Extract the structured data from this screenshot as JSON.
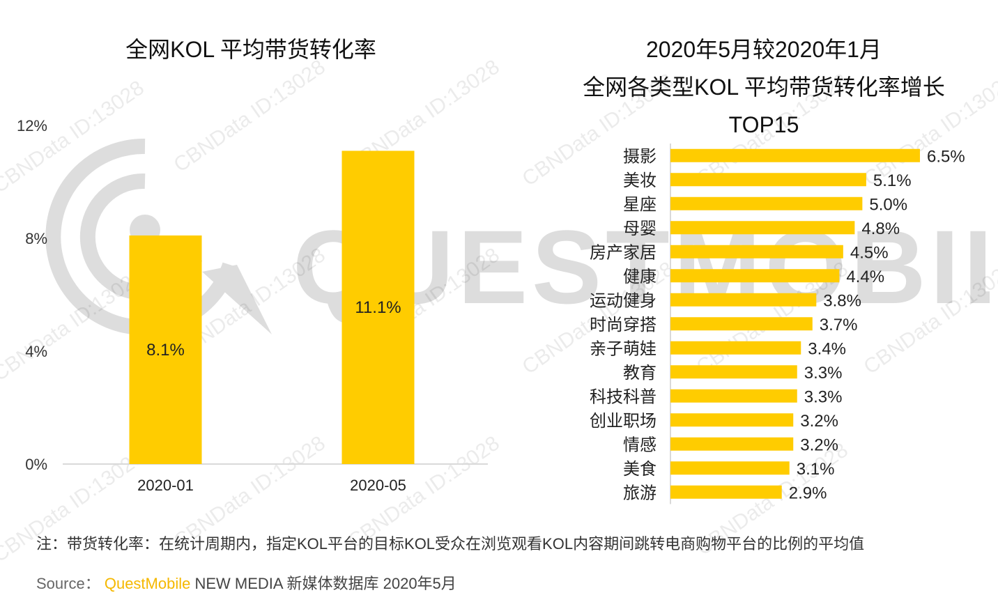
{
  "colors": {
    "bar": "#ffcc00",
    "axis": "#d9d9d9",
    "text": "#222222",
    "brand": "#f5b800"
  },
  "watermark": {
    "logo_text": "QUESTMOBILE",
    "stamp": "CBNData ID:13028"
  },
  "chart_data": [
    {
      "type": "bar",
      "title": "全网KOL 平均带货转化率",
      "categories": [
        "2020-01",
        "2020-05"
      ],
      "values": [
        8.1,
        11.1
      ],
      "data_labels": [
        "8.1%",
        "11.1%"
      ],
      "ylim": [
        0,
        12
      ],
      "yticks": [
        0,
        4,
        8,
        12
      ],
      "ytick_labels": [
        "0%",
        "4%",
        "8%",
        "12%"
      ],
      "grid": false
    },
    {
      "type": "bar",
      "orientation": "horizontal",
      "title_lines": [
        "2020年5月较2020年1月",
        "全网各类型KOL 平均带货转化率增长",
        "TOP15"
      ],
      "categories": [
        "摄影",
        "美妆",
        "星座",
        "母婴",
        "房产家居",
        "健康",
        "运动健身",
        "时尚穿搭",
        "亲子萌娃",
        "教育",
        "科技科普",
        "创业职场",
        "情感",
        "美食",
        "旅游"
      ],
      "values": [
        6.5,
        5.1,
        5.0,
        4.8,
        4.5,
        4.4,
        3.8,
        3.7,
        3.4,
        3.3,
        3.3,
        3.2,
        3.2,
        3.1,
        2.9
      ],
      "data_labels": [
        "6.5%",
        "5.1%",
        "5.0%",
        "4.8%",
        "4.5%",
        "4.4%",
        "3.8%",
        "3.7%",
        "3.4%",
        "3.3%",
        "3.3%",
        "3.2%",
        "3.2%",
        "3.1%",
        "2.9%"
      ]
    }
  ],
  "footer": {
    "note": "注：带货转化率：在统计周期内，指定KOL平台的目标KOL受众在浏览观看KOL内容期间跳转电商购物平台的比例的平均值",
    "source_label": "Source：",
    "source_brand": "QuestMobile",
    "source_rest": "NEW MEDIA 新媒体数据库 2020年5月"
  }
}
